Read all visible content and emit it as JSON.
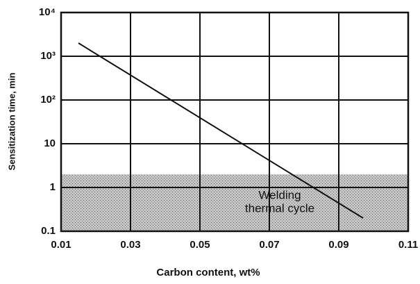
{
  "chart_data": {
    "type": "line",
    "xlabel": "Carbon content, wt%",
    "ylabel": "Sensitization time, min",
    "xlim": [
      0.01,
      0.11
    ],
    "xticks": [
      0.01,
      0.03,
      0.05,
      0.07,
      0.09,
      0.11
    ],
    "ylim": [
      0.1,
      10000
    ],
    "yscale": "log",
    "yticks": [
      0.1,
      1,
      10,
      {
        "value": 100,
        "label": "10²"
      },
      {
        "value": 1000,
        "label": "10³"
      },
      {
        "value": 10000,
        "label": "10⁴"
      }
    ],
    "grid": true,
    "series": [
      {
        "color": "#111111",
        "x": [
          0.015,
          0.097
        ],
        "values": [
          2000,
          0.2
        ]
      }
    ],
    "band": {
      "ylim": [
        0.1,
        2
      ],
      "color": "#b8b8b8",
      "label": [
        "Welding",
        "thermal cycle"
      ]
    }
  }
}
